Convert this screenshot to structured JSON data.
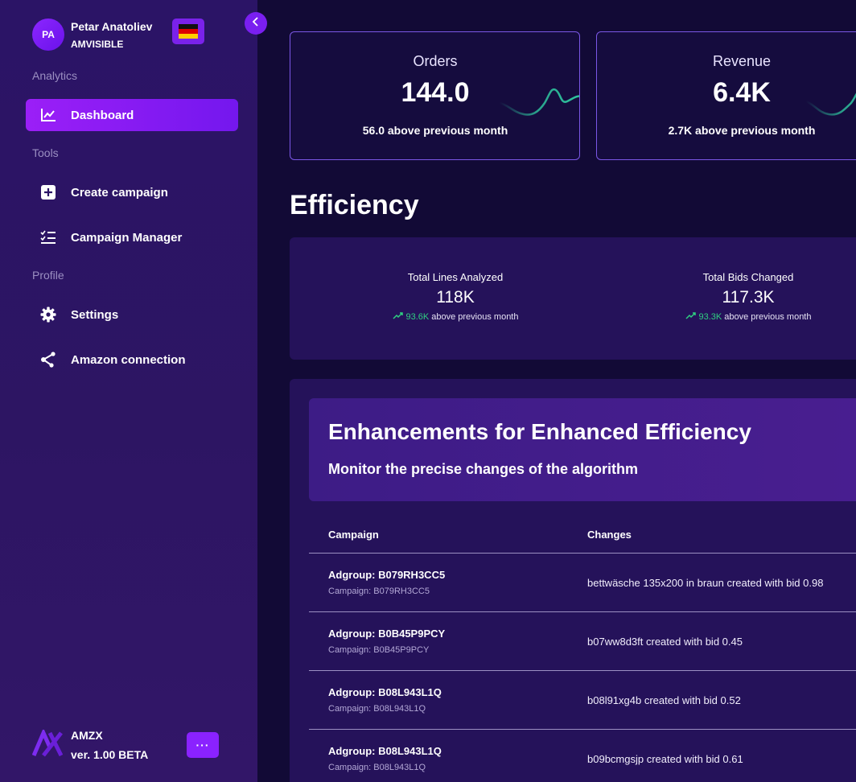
{
  "profile": {
    "initials": "PA",
    "name": "Petar Anatoliev",
    "company": "AMVISIBLE",
    "flag_icon": "germany-flag-icon"
  },
  "sidebar": {
    "sections": [
      {
        "label": "Analytics"
      },
      {
        "label": "Tools"
      },
      {
        "label": "Profile"
      }
    ],
    "items": [
      {
        "label": "Dashboard",
        "icon": "chart-line-icon",
        "active": true
      },
      {
        "label": "Create campaign",
        "icon": "plus-square-icon",
        "active": false
      },
      {
        "label": "Campaign Manager",
        "icon": "checklist-icon",
        "active": false
      },
      {
        "label": "Settings",
        "icon": "gear-icon",
        "active": false
      },
      {
        "label": "Amazon connection",
        "icon": "share-nodes-icon",
        "active": false
      }
    ],
    "brand": {
      "name": "AMZX",
      "version": "ver. 1.00 BETA",
      "more_label": "···"
    }
  },
  "kpis": [
    {
      "title": "Orders",
      "value": "144.0",
      "subtitle": "56.0 above previous month"
    },
    {
      "title": "Revenue",
      "value": "6.4K",
      "subtitle": "2.7K above previous month"
    }
  ],
  "efficiency": {
    "title": "Efficiency",
    "stats": [
      {
        "label": "Total Lines Analyzed",
        "value": "118K",
        "change": "93.6K",
        "change_suffix": "above previous month"
      },
      {
        "label": "Total Bids Changed",
        "value": "117.3K",
        "change": "93.3K",
        "change_suffix": "above previous month"
      }
    ]
  },
  "enhancements": {
    "title": "Enhancements for Enhanced Efficiency",
    "subtitle": "Monitor the precise changes of the algorithm",
    "columns": [
      "Campaign",
      "Changes"
    ],
    "rows": [
      {
        "adgroup": "Adgroup: B079RH3CC5",
        "campaign": "Campaign: B079RH3CC5",
        "change": "bettwäsche 135x200 in braun created with bid 0.98"
      },
      {
        "adgroup": "Adgroup: B0B45P9PCY",
        "campaign": "Campaign: B0B45P9PCY",
        "change": "b07ww8d3ft created with bid 0.45"
      },
      {
        "adgroup": "Adgroup: B08L943L1Q",
        "campaign": "Campaign: B08L943L1Q",
        "change": "b08l91xg4b created with bid 0.52"
      },
      {
        "adgroup": "Adgroup: B08L943L1Q",
        "campaign": "Campaign: B08L943L1Q",
        "change": "b09bcmgsjp created with bid 0.61"
      }
    ]
  },
  "colors": {
    "accent": "#8a22ff",
    "sparkline": "#2fc8a0",
    "positive": "#2fcf80",
    "background": "#120a36",
    "panel": "#25125a"
  }
}
